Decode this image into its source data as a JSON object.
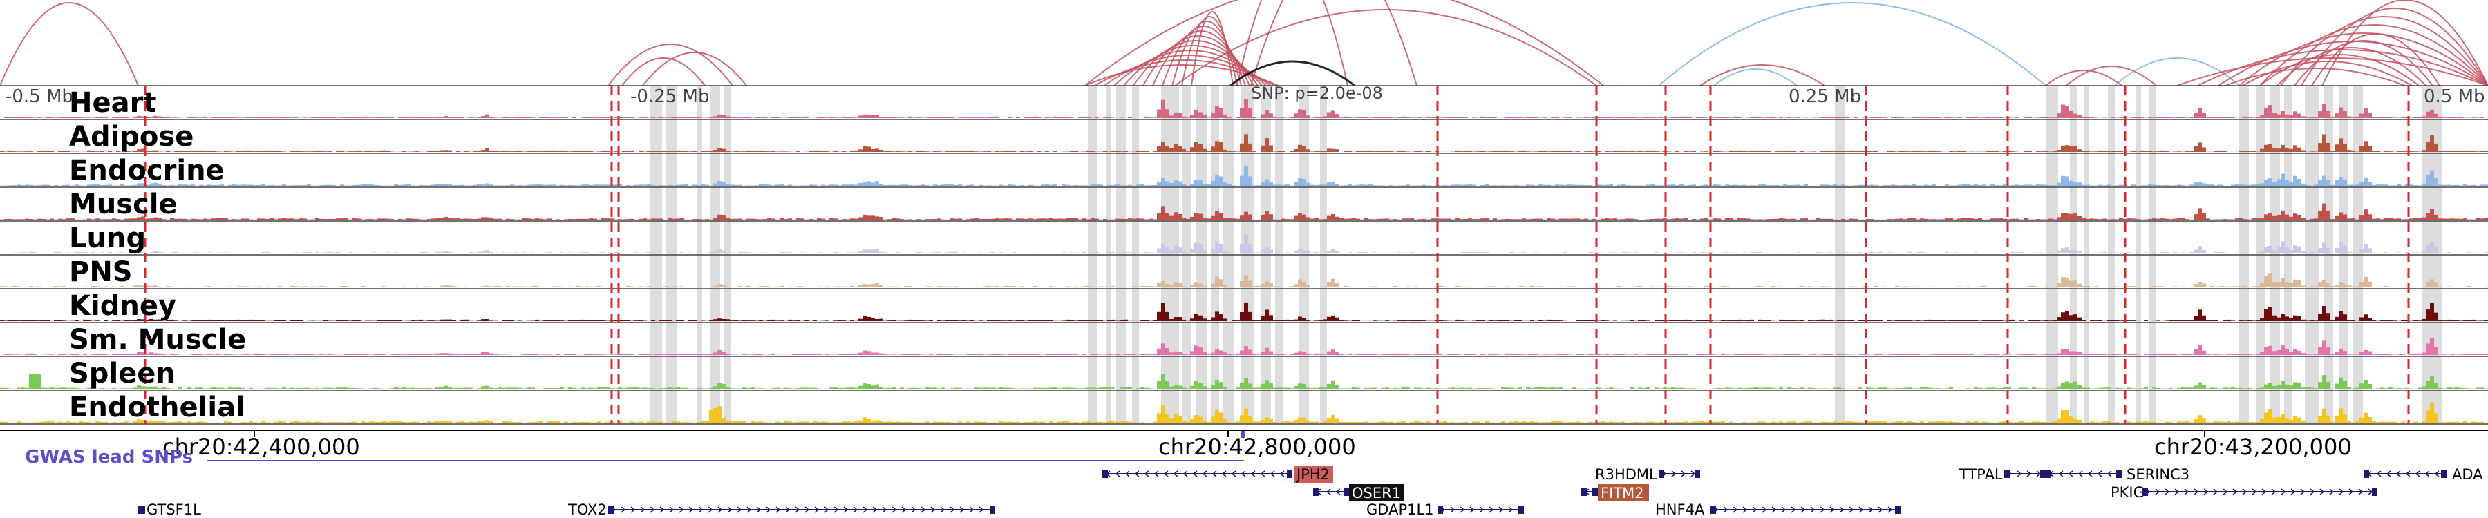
{
  "view": {
    "ruler_labels": [
      "-0.5 Mb",
      "-0.25 Mb",
      "0.25 Mb",
      "0.5 Mb"
    ],
    "snp_label": "SNP: p=2.0e-08",
    "coordinates": [
      "chr20:42,400,000",
      "chr20:42,800,000",
      "chr20:43,200,000"
    ],
    "gwas_track_label": "GWAS lead SNPs"
  },
  "tracks": [
    {
      "name": "Heart",
      "color": "#d4697f"
    },
    {
      "name": "Adipose",
      "color": "#b5573a"
    },
    {
      "name": "Endocrine",
      "color": "#8fb8ea"
    },
    {
      "name": "Muscle",
      "color": "#c2514a"
    },
    {
      "name": "Lung",
      "color": "#c8c9e6"
    },
    {
      "name": "PNS",
      "color": "#ddb896"
    },
    {
      "name": "Kidney",
      "color": "#6b0d0d"
    },
    {
      "name": "Sm. Muscle",
      "color": "#e673ad"
    },
    {
      "name": "Spleen",
      "color": "#7cc95a"
    },
    {
      "name": "Endothelial",
      "color": "#f4c41f"
    }
  ],
  "genes": [
    {
      "name": "JPH2",
      "highlight": "#d05a5a"
    },
    {
      "name": "OSER1",
      "highlight": "#111111"
    },
    {
      "name": "R3HDML",
      "highlight": ""
    },
    {
      "name": "FITM2",
      "highlight": "#b5573a"
    },
    {
      "name": "TTPAL",
      "highlight": ""
    },
    {
      "name": "SERINC3",
      "highlight": ""
    },
    {
      "name": "ADA",
      "highlight": ""
    },
    {
      "name": "PKIG",
      "highlight": ""
    },
    {
      "name": "GTSF1L",
      "highlight": ""
    },
    {
      "name": "TOX2",
      "highlight": ""
    },
    {
      "name": "GDAP1L1",
      "highlight": ""
    },
    {
      "name": "HNF4A",
      "highlight": ""
    }
  ],
  "colors": {
    "loop_primary": "#c45060",
    "loop_secondary": "#7fb3e6",
    "snp_loop": "#000000",
    "candidate_line": "#d9252c",
    "peak_shading": "#d7d7d7",
    "gwas": "#5a4fc8",
    "gene_structure": "#1a1a6e"
  }
}
